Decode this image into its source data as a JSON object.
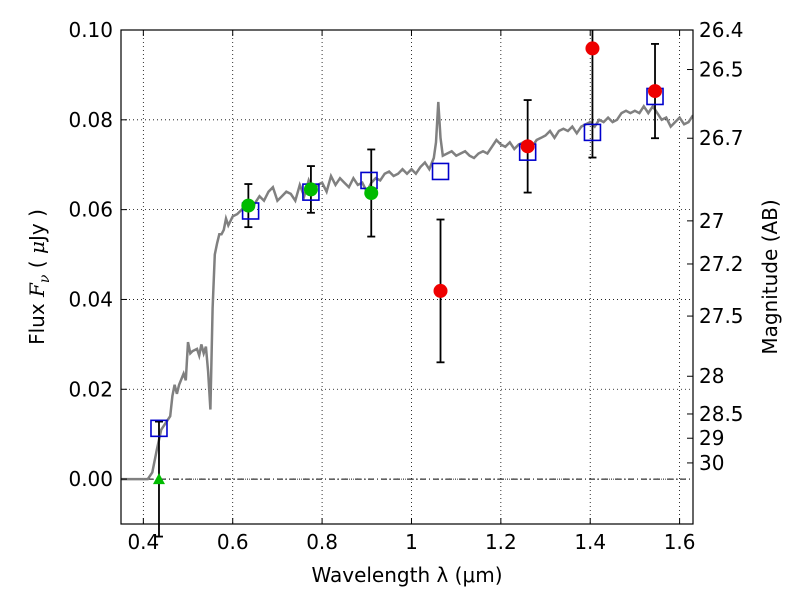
{
  "chart_data": {
    "type": "scatter",
    "xlabel": "Wavelength  λ (μm)",
    "ylabel_left": {
      "prefix": "Flux  ",
      "symbol": "F",
      "subscript": "ν",
      "suffix_open": "  ( ",
      "unit_symbol": "μ",
      "unit_text": "Jy )"
    },
    "ylabel_right": "Magnitude (AB)",
    "xlim": [
      0.35,
      1.63
    ],
    "ylim": [
      -0.01,
      0.1
    ],
    "x_ticks": [
      0.4,
      0.6,
      0.8,
      1.0,
      1.2,
      1.4,
      1.6
    ],
    "x_tick_labels": [
      "0.4",
      "0.6",
      "0.8",
      "1",
      "1.2",
      "1.4",
      "1.6"
    ],
    "y_ticks": [
      0.0,
      0.02,
      0.04,
      0.06,
      0.08,
      0.1
    ],
    "y_tick_labels": [
      "0.00",
      "0.02",
      "0.04",
      "0.06",
      "0.08",
      "0.10"
    ],
    "mag_ticks": [
      {
        "flux": 0.1,
        "label": "26.4"
      },
      {
        "flux": 0.0912,
        "label": "26.5"
      },
      {
        "flux": 0.0759,
        "label": "26.7"
      },
      {
        "flux": 0.0575,
        "label": "27"
      },
      {
        "flux": 0.0479,
        "label": "27.2"
      },
      {
        "flux": 0.0363,
        "label": "27.5"
      },
      {
        "flux": 0.0229,
        "label": "28"
      },
      {
        "flux": 0.0145,
        "label": "28.5"
      },
      {
        "flux": 0.0091,
        "label": "29"
      },
      {
        "flux": 0.0036,
        "label": "30"
      }
    ],
    "grid": true,
    "zero_line": true,
    "colors": {
      "model_line": "#808080",
      "model_points": "#0000cc",
      "green_points": "#00bb00",
      "red_points": "#ee0000",
      "errorbar": "#000000"
    },
    "model_spectrum": [
      [
        0.35,
        0.0
      ],
      [
        0.4,
        0.0
      ],
      [
        0.41,
        0.0
      ],
      [
        0.42,
        0.0015
      ],
      [
        0.43,
        0.0065
      ],
      [
        0.44,
        0.011
      ],
      [
        0.45,
        0.0125
      ],
      [
        0.46,
        0.014
      ],
      [
        0.465,
        0.0185
      ],
      [
        0.47,
        0.021
      ],
      [
        0.475,
        0.019
      ],
      [
        0.48,
        0.021
      ],
      [
        0.49,
        0.0235
      ],
      [
        0.495,
        0.022
      ],
      [
        0.5,
        0.0305
      ],
      [
        0.505,
        0.028
      ],
      [
        0.51,
        0.0285
      ],
      [
        0.52,
        0.029
      ],
      [
        0.525,
        0.0275
      ],
      [
        0.53,
        0.03
      ],
      [
        0.535,
        0.028
      ],
      [
        0.54,
        0.0295
      ],
      [
        0.545,
        0.024
      ],
      [
        0.55,
        0.0155
      ],
      [
        0.555,
        0.038
      ],
      [
        0.56,
        0.05
      ],
      [
        0.565,
        0.0525
      ],
      [
        0.57,
        0.0545
      ],
      [
        0.575,
        0.0545
      ],
      [
        0.58,
        0.0555
      ],
      [
        0.585,
        0.058
      ],
      [
        0.59,
        0.0565
      ],
      [
        0.6,
        0.0585
      ],
      [
        0.61,
        0.059
      ],
      [
        0.62,
        0.06
      ],
      [
        0.63,
        0.061
      ],
      [
        0.64,
        0.06
      ],
      [
        0.65,
        0.0615
      ],
      [
        0.66,
        0.063
      ],
      [
        0.67,
        0.062
      ],
      [
        0.68,
        0.064
      ],
      [
        0.69,
        0.065
      ],
      [
        0.7,
        0.062
      ],
      [
        0.71,
        0.063
      ],
      [
        0.72,
        0.064
      ],
      [
        0.73,
        0.0635
      ],
      [
        0.74,
        0.062
      ],
      [
        0.75,
        0.0655
      ],
      [
        0.76,
        0.063
      ],
      [
        0.77,
        0.0665
      ],
      [
        0.78,
        0.064
      ],
      [
        0.79,
        0.0655
      ],
      [
        0.8,
        0.066
      ],
      [
        0.81,
        0.064
      ],
      [
        0.82,
        0.0675
      ],
      [
        0.83,
        0.0655
      ],
      [
        0.84,
        0.067
      ],
      [
        0.85,
        0.066
      ],
      [
        0.86,
        0.065
      ],
      [
        0.87,
        0.067
      ],
      [
        0.88,
        0.0655
      ],
      [
        0.89,
        0.066
      ],
      [
        0.9,
        0.064
      ],
      [
        0.91,
        0.066
      ],
      [
        0.92,
        0.067
      ],
      [
        0.93,
        0.0665
      ],
      [
        0.94,
        0.068
      ],
      [
        0.95,
        0.0685
      ],
      [
        0.96,
        0.0675
      ],
      [
        0.97,
        0.068
      ],
      [
        0.98,
        0.069
      ],
      [
        0.99,
        0.068
      ],
      [
        1.0,
        0.069
      ],
      [
        1.01,
        0.068
      ],
      [
        1.02,
        0.0695
      ],
      [
        1.03,
        0.0705
      ],
      [
        1.04,
        0.069
      ],
      [
        1.05,
        0.0715
      ],
      [
        1.055,
        0.075
      ],
      [
        1.06,
        0.084
      ],
      [
        1.065,
        0.076
      ],
      [
        1.07,
        0.072
      ],
      [
        1.08,
        0.0725
      ],
      [
        1.09,
        0.073
      ],
      [
        1.1,
        0.072
      ],
      [
        1.11,
        0.0725
      ],
      [
        1.12,
        0.073
      ],
      [
        1.13,
        0.072
      ],
      [
        1.14,
        0.0715
      ],
      [
        1.15,
        0.0725
      ],
      [
        1.16,
        0.073
      ],
      [
        1.17,
        0.0725
      ],
      [
        1.18,
        0.074
      ],
      [
        1.19,
        0.0755
      ],
      [
        1.2,
        0.0745
      ],
      [
        1.21,
        0.074
      ],
      [
        1.22,
        0.075
      ],
      [
        1.23,
        0.0735
      ],
      [
        1.24,
        0.0745
      ],
      [
        1.25,
        0.075
      ],
      [
        1.26,
        0.0735
      ],
      [
        1.27,
        0.074
      ],
      [
        1.28,
        0.0755
      ],
      [
        1.29,
        0.076
      ],
      [
        1.3,
        0.0765
      ],
      [
        1.31,
        0.0775
      ],
      [
        1.32,
        0.076
      ],
      [
        1.33,
        0.0775
      ],
      [
        1.34,
        0.078
      ],
      [
        1.35,
        0.0775
      ],
      [
        1.36,
        0.0785
      ],
      [
        1.37,
        0.077
      ],
      [
        1.38,
        0.0785
      ],
      [
        1.39,
        0.079
      ],
      [
        1.4,
        0.0795
      ],
      [
        1.41,
        0.0785
      ],
      [
        1.42,
        0.08
      ],
      [
        1.43,
        0.0795
      ],
      [
        1.44,
        0.0805
      ],
      [
        1.45,
        0.0795
      ],
      [
        1.46,
        0.08
      ],
      [
        1.47,
        0.0815
      ],
      [
        1.48,
        0.082
      ],
      [
        1.49,
        0.0815
      ],
      [
        1.5,
        0.082
      ],
      [
        1.51,
        0.0815
      ],
      [
        1.52,
        0.083
      ],
      [
        1.53,
        0.0815
      ],
      [
        1.54,
        0.083
      ],
      [
        1.55,
        0.0815
      ],
      [
        1.56,
        0.08
      ],
      [
        1.57,
        0.0805
      ],
      [
        1.58,
        0.0785
      ],
      [
        1.59,
        0.0795
      ],
      [
        1.6,
        0.0805
      ],
      [
        1.61,
        0.079
      ],
      [
        1.62,
        0.0795
      ],
      [
        1.63,
        0.081
      ]
    ],
    "model_points": [
      {
        "x": 0.435,
        "y": 0.0113
      },
      {
        "x": 0.64,
        "y": 0.0597
      },
      {
        "x": 0.775,
        "y": 0.0639
      },
      {
        "x": 0.905,
        "y": 0.0665
      },
      {
        "x": 1.065,
        "y": 0.0685
      },
      {
        "x": 1.26,
        "y": 0.0728
      },
      {
        "x": 1.405,
        "y": 0.0772
      },
      {
        "x": 1.545,
        "y": 0.0852
      }
    ],
    "observed_points": [
      {
        "x": 0.435,
        "y": 0.0,
        "err": 0.0128,
        "color": "green",
        "marker": "triangle"
      },
      {
        "x": 0.635,
        "y": 0.0609,
        "err": 0.0048,
        "color": "green",
        "marker": "circle"
      },
      {
        "x": 0.775,
        "y": 0.0645,
        "err": 0.0052,
        "color": "green",
        "marker": "circle"
      },
      {
        "x": 0.91,
        "y": 0.0637,
        "err": 0.0097,
        "color": "green",
        "marker": "circle"
      },
      {
        "x": 1.065,
        "y": 0.0419,
        "err": 0.0159,
        "color": "red",
        "marker": "circle"
      },
      {
        "x": 1.26,
        "y": 0.0741,
        "err": 0.0103,
        "color": "red",
        "marker": "circle"
      },
      {
        "x": 1.405,
        "y": 0.0959,
        "err": 0.0243,
        "color": "red",
        "marker": "circle"
      },
      {
        "x": 1.545,
        "y": 0.0864,
        "err": 0.0105,
        "color": "red",
        "marker": "circle"
      }
    ]
  }
}
